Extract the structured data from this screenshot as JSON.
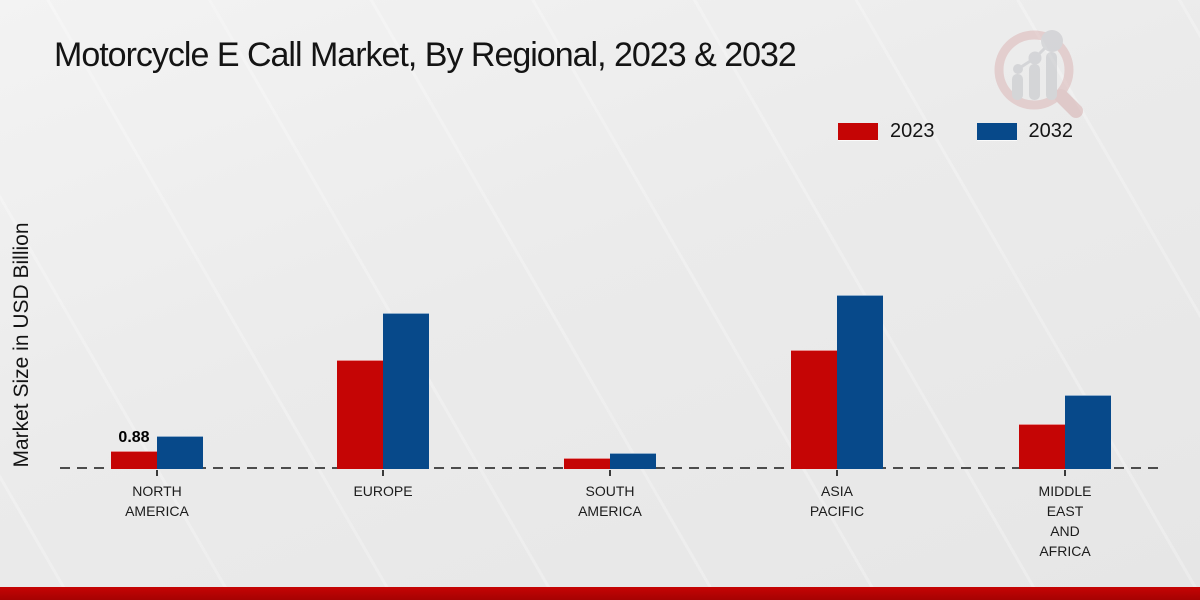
{
  "title": "Motorcycle E Call Market, By Regional, 2023 & 2032",
  "legend": {
    "items": [
      {
        "label": "2023",
        "color": "#c50505"
      },
      {
        "label": "2032",
        "color": "#07498a"
      }
    ]
  },
  "watermark": {
    "name": "market-research-future-logo"
  },
  "footer": {
    "accent_color": "#c60404"
  },
  "chart_data": {
    "type": "bar",
    "title": "Motorcycle E Call Market, By Regional, 2023 & 2032",
    "xlabel": "",
    "ylabel": "Market Size in USD Billion",
    "ylim": [
      0,
      9
    ],
    "grid": false,
    "baseline_style": "dashed",
    "legend_position": "top-right",
    "categories": [
      "NORTH AMERICA",
      "EUROPE",
      "SOUTH AMERICA",
      "ASIA PACIFIC",
      "MIDDLE EAST AND AFRICA"
    ],
    "category_label_lines": [
      "NORTH\nAMERICA",
      "EUROPE",
      "SOUTH\nAMERICA",
      "ASIA\nPACIFIC",
      "MIDDLE\nEAST\nAND\nAFRICA"
    ],
    "series": [
      {
        "name": "2023",
        "color": "#c50505",
        "values": [
          0.88,
          5.3,
          0.55,
          5.8,
          2.2
        ]
      },
      {
        "name": "2032",
        "color": "#07498a",
        "values": [
          1.6,
          7.6,
          0.8,
          8.5,
          3.6
        ]
      }
    ],
    "bar_value_labels": [
      {
        "series": "2023",
        "category_index": 0,
        "text": "0.88"
      }
    ]
  }
}
